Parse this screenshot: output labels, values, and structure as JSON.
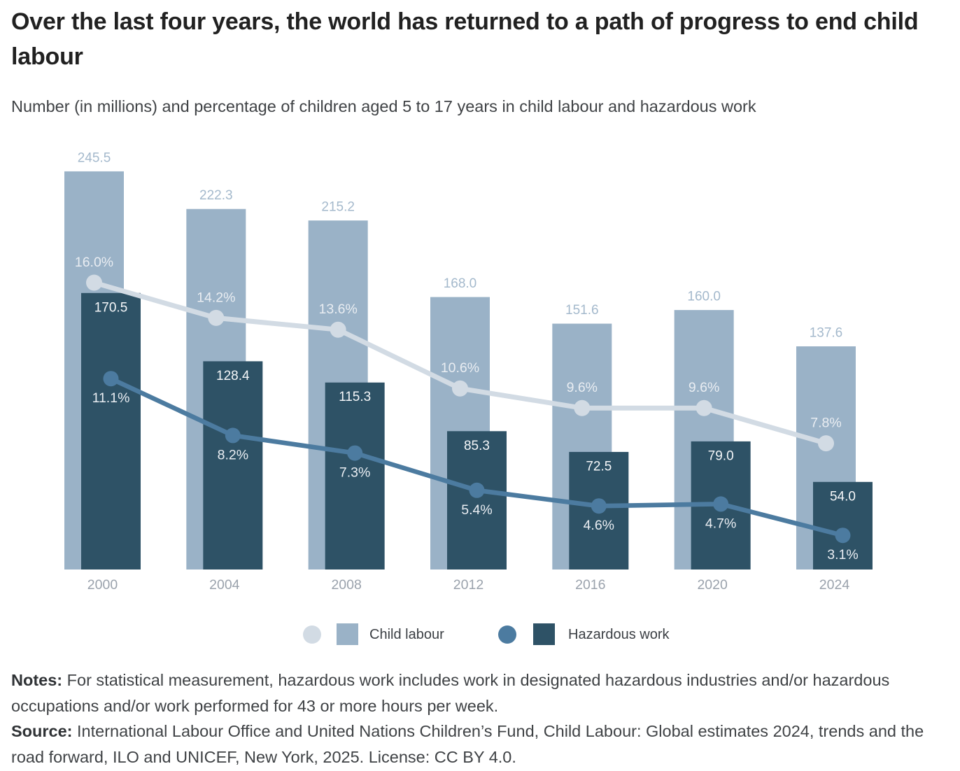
{
  "figure": {
    "title": "Over the last four years, the world has returned to a path of progress to end child labour",
    "subtitle": "Number (in millions) and percentage of children aged 5 to 17 years in child labour and hazardous work",
    "notes_label": "Notes:",
    "notes_text": " For statistical measurement, hazardous work includes work in designated hazardous industries and/or hazardous occupations and/or work performed for 43 or more hours per week.",
    "source_label": "Source:",
    "source_text": " International Labour Office and United Nations Children’s Fund, Child Labour: Global estimates 2024, trends and the road forward, ILO and UNICEF, New York, 2025. License: CC BY 4.0."
  },
  "legend": {
    "items": [
      {
        "label": "Child labour",
        "line_color": "#d2dbe4",
        "bar_color": "#9ab2c7"
      },
      {
        "label": "Hazardous work",
        "line_color": "#4c7ba0",
        "bar_color": "#2e5266"
      }
    ]
  },
  "colors": {
    "background": "#ffffff",
    "title_text": "#212121",
    "body_text": "#3f4245",
    "axis_label": "#9aa2ac",
    "value_label_above": "#a4b9cc",
    "value_label_inside": "#f5f7f9",
    "pct_label": "#e9edf2",
    "bar_child_labour": "#9ab2c7",
    "bar_hazardous_work": "#2e5266",
    "line_child_labour": "#d2dbe4",
    "line_hazardous_work": "#4c7ba0"
  },
  "chart_data": {
    "type": "bar",
    "subtype": "grouped overlapping bars with overlaid percentage lines",
    "title": "Over the last four years, the world has returned to a path of progress to end child labour",
    "subtitle": "Number (in millions) and percentage of children aged 5 to 17 years in child labour and hazardous work",
    "categories": [
      "2000",
      "2004",
      "2008",
      "2012",
      "2016",
      "2020",
      "2024"
    ],
    "series": [
      {
        "name": "Child labour",
        "render": "bar",
        "unit": "millions",
        "color": "#9ab2c7",
        "values": [
          245.5,
          222.3,
          215.2,
          168.0,
          151.6,
          160.0,
          137.6
        ],
        "label_position": "above"
      },
      {
        "name": "Hazardous work",
        "render": "bar",
        "unit": "millions",
        "color": "#2e5266",
        "values": [
          170.5,
          128.4,
          115.3,
          85.3,
          72.5,
          79.0,
          54.0
        ],
        "label_position": "inside"
      },
      {
        "name": "Child labour (%)",
        "render": "line",
        "unit": "percent",
        "color": "#d2dbe4",
        "values": [
          16.0,
          14.2,
          13.6,
          10.6,
          9.6,
          9.6,
          7.8
        ],
        "label_position": "above"
      },
      {
        "name": "Hazardous work (%)",
        "render": "line",
        "unit": "percent",
        "color": "#4c7ba0",
        "values": [
          11.1,
          8.2,
          7.3,
          5.4,
          4.6,
          4.7,
          3.1
        ],
        "label_position": "below"
      }
    ],
    "xlabel": "",
    "ylabel": "",
    "grid": false,
    "y_axis_visible": false,
    "legend_position": "bottom"
  }
}
